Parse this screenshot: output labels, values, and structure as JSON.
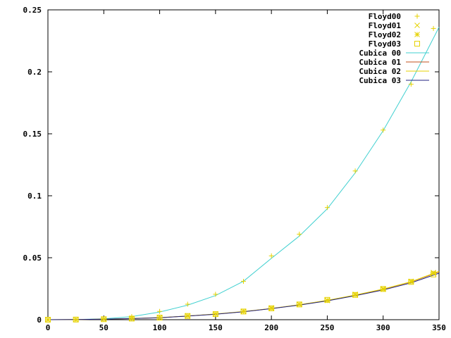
{
  "chart_data": {
    "type": "scatter",
    "title": "",
    "xlabel": "",
    "ylabel": "",
    "xlim": [
      0,
      350
    ],
    "ylim": [
      0,
      0.25
    ],
    "grid": false,
    "legend_position": "top-right",
    "x_ticks": [
      0,
      50,
      100,
      150,
      200,
      250,
      300,
      350
    ],
    "x_tick_labels": [
      "0",
      "50",
      "100",
      "150",
      "200",
      "250",
      "300",
      "350"
    ],
    "y_ticks": [
      0,
      0.05,
      0.1,
      0.15,
      0.2,
      0.25
    ],
    "y_tick_labels": [
      "0",
      "0.05",
      "0.1",
      "0.15",
      "0.2",
      "0.25"
    ],
    "series": [
      {
        "name": "Floyd00",
        "kind": "points",
        "marker": "plus",
        "color": "#e6d200",
        "x": [
          0,
          25,
          50,
          75,
          100,
          125,
          150,
          175,
          200,
          225,
          250,
          275,
          300,
          325,
          345
        ],
        "y": [
          0,
          0.0001,
          0.0007,
          0.0025,
          0.0067,
          0.0125,
          0.0205,
          0.031,
          0.0515,
          0.069,
          0.0905,
          0.12,
          0.153,
          0.19,
          0.235
        ]
      },
      {
        "name": "Floyd01",
        "kind": "points",
        "marker": "cross",
        "color": "#e6d200",
        "x": [
          0,
          25,
          50,
          75,
          100,
          125,
          150,
          175,
          200,
          225,
          250,
          275,
          300,
          325,
          345
        ],
        "y": [
          0,
          0.0001,
          0.0004,
          0.0009,
          0.0017,
          0.0032,
          0.0045,
          0.0068,
          0.0095,
          0.0125,
          0.0158,
          0.0205,
          0.025,
          0.031,
          0.038
        ]
      },
      {
        "name": "Floyd02",
        "kind": "points",
        "marker": "star",
        "color": "#e6d200",
        "x": [
          0,
          25,
          50,
          75,
          100,
          125,
          150,
          175,
          200,
          225,
          250,
          275,
          300,
          325,
          345
        ],
        "y": [
          0,
          0.0001,
          0.0004,
          0.001,
          0.0018,
          0.003,
          0.0047,
          0.0066,
          0.009,
          0.0122,
          0.0155,
          0.02,
          0.0245,
          0.0305,
          0.0375
        ]
      },
      {
        "name": "Floyd03",
        "kind": "points",
        "marker": "square",
        "color": "#e6d200",
        "x": [
          0,
          25,
          50,
          75,
          100,
          125,
          150,
          175,
          200,
          225,
          250,
          275,
          300,
          325,
          345
        ],
        "y": [
          0,
          0.0001,
          0.0004,
          0.0009,
          0.0017,
          0.003,
          0.0045,
          0.0066,
          0.0092,
          0.0123,
          0.016,
          0.02,
          0.0248,
          0.0305,
          0.0365
        ]
      },
      {
        "name": "Cubica 00",
        "kind": "line",
        "color": "#40d0d0",
        "x": [
          0,
          25,
          50,
          75,
          100,
          125,
          150,
          175,
          200,
          225,
          250,
          275,
          300,
          325,
          350
        ],
        "y": [
          0,
          0.0001,
          0.0007,
          0.0025,
          0.0062,
          0.0117,
          0.0195,
          0.031,
          0.0495,
          0.0675,
          0.0895,
          0.1185,
          0.1525,
          0.192,
          0.236
        ]
      },
      {
        "name": "Cubica 01",
        "kind": "line",
        "color": "#c0501e",
        "x": [
          0,
          25,
          50,
          75,
          100,
          125,
          150,
          175,
          200,
          225,
          250,
          275,
          300,
          325,
          350
        ],
        "y": [
          0,
          0.0001,
          0.0004,
          0.0009,
          0.0016,
          0.003,
          0.0045,
          0.0065,
          0.009,
          0.012,
          0.0155,
          0.0198,
          0.0245,
          0.0305,
          0.0385
        ]
      },
      {
        "name": "Cubica 02",
        "kind": "line",
        "color": "#e6d200",
        "x": [
          0,
          25,
          50,
          75,
          100,
          125,
          150,
          175,
          200,
          225,
          250,
          275,
          300,
          325,
          350
        ],
        "y": [
          0,
          0.0001,
          0.0004,
          0.001,
          0.0017,
          0.003,
          0.0046,
          0.0066,
          0.0091,
          0.0121,
          0.0156,
          0.0199,
          0.0247,
          0.0307,
          0.039
        ]
      },
      {
        "name": "Cubica 03",
        "kind": "line",
        "color": "#202080",
        "x": [
          0,
          25,
          50,
          75,
          100,
          125,
          150,
          175,
          200,
          225,
          250,
          275,
          300,
          325,
          350
        ],
        "y": [
          0,
          0.0001,
          0.0004,
          0.0009,
          0.0016,
          0.0029,
          0.0044,
          0.0064,
          0.0089,
          0.0118,
          0.0152,
          0.0194,
          0.024,
          0.0298,
          0.0375
        ]
      }
    ]
  }
}
